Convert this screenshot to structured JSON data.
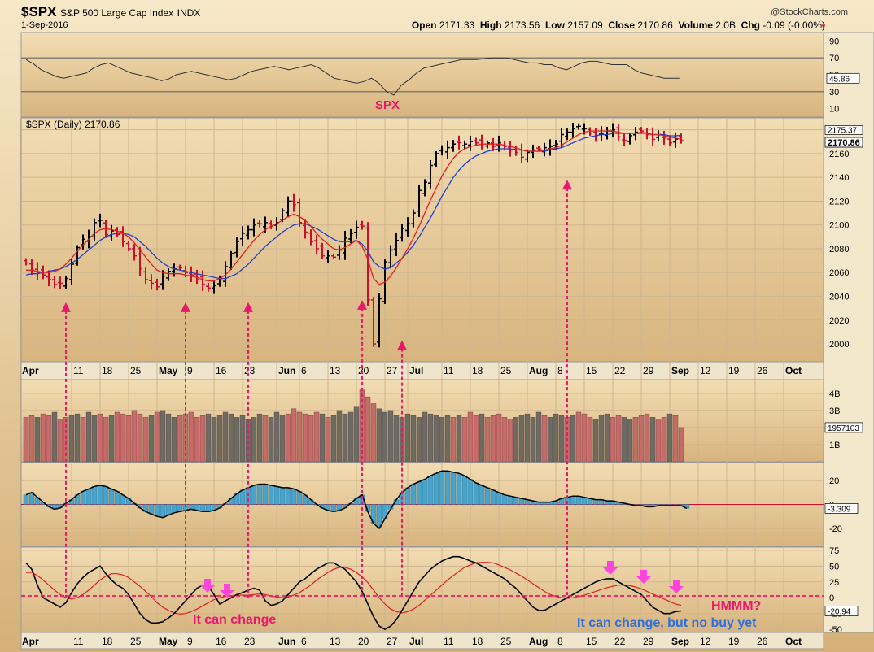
{
  "header": {
    "symbol": "$SPX",
    "name": "S&P 500 Large Cap Index",
    "exchange": "INDX",
    "date": "1-Sep-2016",
    "watermark": "@StockCharts.com",
    "open_label": "Open",
    "open": "2171.33",
    "high_label": "High",
    "high": "2173.56",
    "low_label": "Low",
    "low": "2157.09",
    "close_label": "Close",
    "close": "2170.86",
    "volume_label": "Volume",
    "volume": "2.0B",
    "chg_label": "Chg",
    "chg": "-0.09 (-0.00%)"
  },
  "colors": {
    "background_top": "#f6e5c4",
    "background_bottom": "#d9b47a",
    "up_bar": "#000000",
    "down_bar": "#c8102e",
    "ma_fast": "#e02020",
    "ma_slow": "#2040d0",
    "macd_hist": "#4aa3c8",
    "annotation_pink": "#e8186c",
    "annotation_magenta": "#ff44dd",
    "annotation_blue": "#2f6fe0"
  },
  "chart_data": [
    {
      "panel": "rsi",
      "type": "line",
      "title": "SPX",
      "ylim": [
        0,
        100
      ],
      "yticks": [
        90,
        70,
        50,
        30,
        10
      ],
      "reference_lines": [
        70,
        30
      ],
      "last_value": "45.86",
      "values": [
        68,
        63,
        56,
        52,
        48,
        46,
        48,
        50,
        52,
        58,
        62,
        64,
        60,
        56,
        52,
        50,
        48,
        46,
        43,
        45,
        50,
        52,
        54,
        52,
        50,
        48,
        46,
        44,
        46,
        50,
        54,
        56,
        58,
        60,
        58,
        56,
        58,
        60,
        62,
        58,
        52,
        46,
        44,
        42,
        40,
        42,
        46,
        40,
        30,
        26,
        38,
        44,
        52,
        58,
        60,
        62,
        64,
        66,
        68,
        68,
        68,
        69,
        70,
        70,
        70,
        68,
        66,
        64,
        64,
        62,
        62,
        58,
        56,
        60,
        64,
        66,
        66,
        64,
        62,
        62,
        62,
        56,
        52,
        50,
        48,
        46,
        46,
        45.86
      ]
    },
    {
      "panel": "price",
      "type": "ohlc",
      "title": "$SPX (Daily) 2170.86",
      "ylim": [
        1985,
        2190
      ],
      "yticks": [
        2000,
        2020,
        2040,
        2060,
        2080,
        2100,
        2120,
        2140,
        2160,
        2180
      ],
      "last_labels": [
        "2175.37",
        "2170.86"
      ],
      "x_labels": [
        "Apr",
        "11",
        "18",
        "25",
        "May",
        "9",
        "16",
        "23",
        "Jun",
        "6",
        "13",
        "20",
        "27",
        "Jul",
        "11",
        "18",
        "25",
        "Aug",
        "8",
        "15",
        "22",
        "29",
        "Sep",
        "12",
        "19",
        "26",
        "Oct"
      ],
      "closes": [
        2068,
        2062,
        2060,
        2058,
        2054,
        2050,
        2051,
        2055,
        2067,
        2081,
        2088,
        2090,
        2102,
        2104,
        2092,
        2095,
        2092,
        2086,
        2080,
        2074,
        2063,
        2054,
        2051,
        2048,
        2057,
        2061,
        2063,
        2064,
        2060,
        2058,
        2054,
        2050,
        2047,
        2049,
        2055,
        2065,
        2076,
        2086,
        2093,
        2096,
        2100,
        2101,
        2102,
        2099,
        2102,
        2112,
        2120,
        2117,
        2102,
        2094,
        2086,
        2080,
        2074,
        2074,
        2073,
        2079,
        2089,
        2093,
        2098,
        2099,
        2037,
        2000,
        2038,
        2069,
        2079,
        2087,
        2097,
        2101,
        2110,
        2129,
        2136,
        2150,
        2160,
        2163,
        2165,
        2168,
        2169,
        2168,
        2170,
        2169,
        2168,
        2169,
        2166,
        2169,
        2166,
        2163,
        2161,
        2157,
        2161,
        2163,
        2164,
        2165,
        2166,
        2168,
        2176,
        2178,
        2181,
        2183,
        2181,
        2177,
        2174,
        2177,
        2179,
        2180,
        2174,
        2171,
        2175,
        2178,
        2179,
        2176,
        2172,
        2176,
        2173,
        2169,
        2172,
        2170.86
      ],
      "fast_ma": [
        2062,
        2062,
        2061,
        2060,
        2060,
        2061,
        2063,
        2067,
        2072,
        2078,
        2083,
        2088,
        2093,
        2096,
        2097,
        2096,
        2095,
        2093,
        2090,
        2085,
        2079,
        2073,
        2067,
        2062,
        2060,
        2059,
        2059,
        2059,
        2058,
        2057,
        2056,
        2054,
        2053,
        2053,
        2055,
        2058,
        2063,
        2069,
        2075,
        2081,
        2087,
        2092,
        2096,
        2099,
        2101,
        2104,
        2107,
        2109,
        2107,
        2104,
        2099,
        2093,
        2088,
        2084,
        2080,
        2079,
        2081,
        2084,
        2087,
        2082,
        2071,
        2055,
        2050,
        2052,
        2057,
        2064,
        2072,
        2080,
        2089,
        2099,
        2110,
        2121,
        2131,
        2141,
        2149,
        2156,
        2161,
        2164,
        2166,
        2167,
        2168,
        2168,
        2168,
        2168,
        2167,
        2166,
        2165,
        2163,
        2162,
        2162,
        2162,
        2163,
        2164,
        2165,
        2167,
        2170,
        2173,
        2176,
        2178,
        2179,
        2179,
        2179,
        2179,
        2179,
        2178,
        2177,
        2177,
        2177,
        2178,
        2177,
        2176,
        2176,
        2175,
        2174,
        2173,
        2172
      ],
      "slow_ma": [
        2058,
        2059,
        2059,
        2060,
        2061,
        2062,
        2063,
        2065,
        2068,
        2071,
        2075,
        2079,
        2083,
        2087,
        2090,
        2092,
        2093,
        2093,
        2092,
        2090,
        2086,
        2082,
        2077,
        2072,
        2068,
        2065,
        2063,
        2062,
        2061,
        2060,
        2059,
        2058,
        2057,
        2056,
        2055,
        2055,
        2057,
        2059,
        2063,
        2067,
        2072,
        2077,
        2082,
        2086,
        2090,
        2094,
        2097,
        2100,
        2101,
        2101,
        2099,
        2097,
        2094,
        2091,
        2088,
        2086,
        2086,
        2086,
        2087,
        2084,
        2078,
        2069,
        2065,
        2063,
        2064,
        2068,
        2072,
        2077,
        2083,
        2090,
        2098,
        2106,
        2115,
        2124,
        2132,
        2140,
        2146,
        2151,
        2155,
        2158,
        2160,
        2162,
        2163,
        2164,
        2164,
        2164,
        2163,
        2163,
        2162,
        2162,
        2162,
        2162,
        2163,
        2164,
        2165,
        2167,
        2169,
        2171,
        2173,
        2174,
        2175,
        2176,
        2176,
        2177,
        2177,
        2177,
        2177,
        2177,
        2177,
        2177,
        2176,
        2176,
        2176,
        2175,
        2175,
        2175.37
      ]
    },
    {
      "panel": "volume",
      "type": "bar",
      "yticks": [
        "4B",
        "3B",
        "2B",
        "1B"
      ],
      "last_label": "1957103",
      "values_billions": [
        2.6,
        2.7,
        2.6,
        2.8,
        2.7,
        2.9,
        2.5,
        2.6,
        2.7,
        2.8,
        2.6,
        2.9,
        2.7,
        2.8,
        2.6,
        2.7,
        2.9,
        2.8,
        2.7,
        3.0,
        2.8,
        2.6,
        2.7,
        2.9,
        3.0,
        2.8,
        2.6,
        2.7,
        2.8,
        2.9,
        2.6,
        2.7,
        2.8,
        2.6,
        2.7,
        2.9,
        2.8,
        2.6,
        2.7,
        2.5,
        2.6,
        2.8,
        2.7,
        2.6,
        2.9,
        2.7,
        2.8,
        3.1,
        2.9,
        2.8,
        2.7,
        2.9,
        2.8,
        2.6,
        2.7,
        3.0,
        2.8,
        2.9,
        3.2,
        4.2,
        3.8,
        3.4,
        3.1,
        2.9,
        3.0,
        2.7,
        2.6,
        2.8,
        2.7,
        2.6,
        2.9,
        2.8,
        2.7,
        2.6,
        2.7,
        2.6,
        2.7,
        2.6,
        2.9,
        2.7,
        2.8,
        2.6,
        2.7,
        2.8,
        2.6,
        2.5,
        2.6,
        2.7,
        2.8,
        2.6,
        2.9,
        2.7,
        2.6,
        2.8,
        2.7,
        2.6,
        2.7,
        2.9,
        2.8,
        2.6,
        2.5,
        2.7,
        2.8,
        2.6,
        2.7,
        2.6,
        2.5,
        2.6,
        2.7,
        2.8,
        2.6,
        2.5,
        2.6,
        2.8,
        2.7,
        2.0
      ],
      "down_flags": [
        1,
        1,
        0,
        1,
        1,
        0,
        1,
        1,
        0,
        0,
        1,
        0,
        0,
        1,
        1,
        0,
        1,
        1,
        1,
        1,
        1,
        1,
        0,
        1,
        0,
        0,
        0,
        1,
        1,
        1,
        1,
        1,
        0,
        0,
        0,
        0,
        0,
        0,
        0,
        0,
        0,
        0,
        1,
        0,
        0,
        0,
        1,
        1,
        1,
        1,
        1,
        1,
        0,
        1,
        0,
        0,
        0,
        0,
        0,
        1,
        1,
        1,
        0,
        0,
        0,
        0,
        0,
        0,
        0,
        0,
        0,
        0,
        0,
        0,
        0,
        1,
        0,
        1,
        1,
        1,
        0,
        1,
        1,
        1,
        1,
        1,
        0,
        0,
        0,
        0,
        0,
        1,
        0,
        0,
        0,
        1,
        0,
        1,
        1,
        1,
        0,
        0,
        0,
        1,
        1,
        0,
        0,
        1,
        1,
        1,
        0,
        1,
        1,
        0,
        1,
        1
      ]
    },
    {
      "panel": "macd_histogram",
      "type": "bar",
      "yticks": [
        20,
        0,
        -20
      ],
      "last_label": "-3.309",
      "values": [
        8,
        10,
        6,
        2,
        -2,
        -4,
        -3,
        1,
        4,
        8,
        11,
        13,
        15,
        16,
        15,
        13,
        11,
        8,
        5,
        1,
        -3,
        -6,
        -8,
        -10,
        -11,
        -9,
        -7,
        -6,
        -5,
        -4,
        -5,
        -6,
        -6,
        -5,
        -3,
        1,
        5,
        9,
        12,
        14,
        16,
        17,
        17,
        16,
        15,
        14,
        14,
        13,
        11,
        8,
        4,
        0,
        -3,
        -5,
        -6,
        -5,
        -3,
        1,
        5,
        8,
        -6,
        -16,
        -20,
        -12,
        -4,
        4,
        10,
        14,
        17,
        19,
        21,
        24,
        26,
        28,
        28,
        27,
        26,
        24,
        21,
        18,
        16,
        14,
        12,
        10,
        8,
        7,
        6,
        5,
        4,
        3,
        2,
        2,
        2,
        3,
        5,
        6,
        7,
        7,
        6,
        5,
        4,
        4,
        3,
        3,
        2,
        1,
        0,
        -1,
        -1,
        -2,
        -2,
        -1,
        -1,
        -1,
        -1,
        -1,
        -3.309
      ],
      "signal": [
        6,
        7,
        7,
        6,
        4,
        2,
        1,
        1,
        1,
        3,
        5,
        7,
        9,
        11,
        12,
        12,
        12,
        11,
        10,
        8,
        6,
        3,
        1,
        -2,
        -4,
        -5,
        -6,
        -6,
        -6,
        -6,
        -5,
        -5,
        -5,
        -5,
        -5,
        -4,
        -2,
        0,
        3,
        5,
        8,
        10,
        12,
        13,
        14,
        14,
        14,
        14,
        13,
        12,
        10,
        8,
        6,
        4,
        2,
        0,
        -1,
        -1,
        0,
        1,
        -1,
        -4,
        -8,
        -10,
        -10,
        -8,
        -5,
        -2,
        1,
        4,
        8,
        11,
        14,
        17,
        20,
        22,
        23,
        24,
        24,
        24,
        23,
        22,
        20,
        18,
        16,
        14,
        12,
        11,
        9,
        8,
        7,
        6,
        5,
        5,
        5,
        5,
        5,
        5,
        5,
        5,
        5,
        5,
        4,
        4,
        3,
        3,
        2,
        1,
        1,
        0,
        0,
        0,
        0,
        -1,
        -1,
        -1,
        -2
      ]
    },
    {
      "panel": "stochastic",
      "type": "line",
      "ylim": [
        -55,
        80
      ],
      "yticks": [
        75,
        50,
        25,
        0,
        -25,
        -50
      ],
      "last_label": "-20.94",
      "fast_values": [
        55,
        45,
        20,
        0,
        -5,
        -10,
        -15,
        -8,
        8,
        22,
        32,
        40,
        45,
        50,
        38,
        28,
        20,
        15,
        5,
        -10,
        -25,
        -35,
        -40,
        -40,
        -38,
        -32,
        -25,
        -15,
        -5,
        5,
        15,
        20,
        18,
        5,
        -10,
        -5,
        0,
        5,
        8,
        12,
        15,
        12,
        -5,
        -12,
        -10,
        -5,
        5,
        15,
        25,
        30,
        38,
        45,
        50,
        55,
        55,
        50,
        45,
        35,
        25,
        10,
        -10,
        -30,
        -45,
        -50,
        -45,
        -35,
        -20,
        -5,
        10,
        25,
        35,
        45,
        52,
        58,
        62,
        65,
        65,
        62,
        58,
        55,
        50,
        45,
        40,
        35,
        30,
        22,
        15,
        5,
        -5,
        -15,
        -20,
        -20,
        -15,
        -10,
        -5,
        0,
        5,
        10,
        15,
        20,
        25,
        28,
        30,
        30,
        25,
        20,
        15,
        10,
        5,
        -5,
        -15,
        -20,
        -25,
        -25,
        -22,
        -20.94
      ],
      "signal_values": [
        40,
        40,
        35,
        28,
        20,
        12,
        5,
        0,
        -2,
        0,
        5,
        12,
        20,
        28,
        34,
        38,
        38,
        36,
        32,
        25,
        18,
        10,
        2,
        -8,
        -15,
        -20,
        -24,
        -26,
        -25,
        -22,
        -18,
        -13,
        -8,
        -3,
        0,
        2,
        3,
        4,
        4,
        4,
        5,
        6,
        5,
        3,
        1,
        0,
        1,
        4,
        8,
        14,
        20,
        28,
        34,
        40,
        45,
        48,
        48,
        45,
        40,
        33,
        24,
        12,
        0,
        -10,
        -18,
        -22,
        -24,
        -22,
        -18,
        -12,
        -4,
        4,
        12,
        20,
        28,
        35,
        42,
        48,
        52,
        55,
        56,
        56,
        55,
        52,
        48,
        44,
        39,
        34,
        28,
        22,
        16,
        10,
        5,
        2,
        0,
        -1,
        0,
        2,
        4,
        7,
        10,
        13,
        16,
        18,
        20,
        20,
        19,
        17,
        14,
        10,
        6,
        2,
        -2,
        -6,
        -10,
        -12
      ]
    }
  ],
  "annotations": {
    "rsi_label": "SPX",
    "it_can_change": "It can change",
    "hmmm": "HMMM?",
    "no_buy_yet": "It can change, but no buy yet"
  }
}
